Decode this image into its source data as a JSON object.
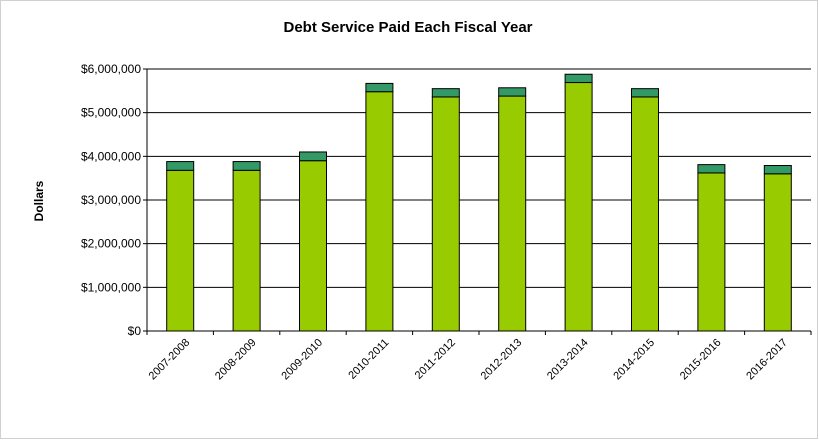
{
  "chart_data": {
    "type": "bar",
    "stacked": true,
    "title": "Debt Service Paid Each Fiscal Year",
    "xlabel": "",
    "ylabel": "Dollars",
    "ylim": [
      0,
      6000000
    ],
    "yticks": [
      0,
      1000000,
      2000000,
      3000000,
      4000000,
      5000000,
      6000000
    ],
    "ytick_labels": [
      "$0",
      "$1,000,000",
      "$2,000,000",
      "$3,000,000",
      "$4,000,000",
      "$5,000,000",
      "$6,000,000"
    ],
    "grid": true,
    "legend": "none",
    "categories": [
      "2007-2008",
      "2008-2009",
      "2009-2010",
      "2010-2011",
      "2011-2012",
      "2012-2013",
      "2013-2014",
      "2014-2015",
      "2015-2016",
      "2016-2017"
    ],
    "series": [
      {
        "color": "#99cc00",
        "values": [
          3680000,
          3680000,
          3900000,
          5480000,
          5360000,
          5380000,
          5690000,
          5360000,
          3620000,
          3600000
        ]
      },
      {
        "color": "#339966",
        "values": [
          200000,
          200000,
          200000,
          190000,
          190000,
          190000,
          190000,
          190000,
          190000,
          190000
        ]
      }
    ]
  }
}
